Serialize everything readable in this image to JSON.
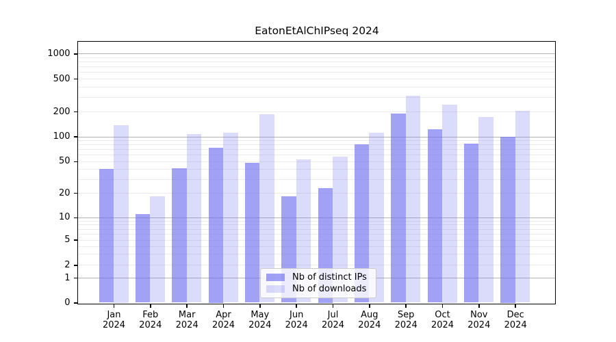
{
  "figure": {
    "title": "EatonEtAlChIPseq 2024"
  },
  "legend": {
    "items": [
      {
        "label": "Nb of distinct IPs",
        "color_key": "series_ips"
      },
      {
        "label": "Nb of downloads",
        "color_key": "series_downloads"
      }
    ]
  },
  "colors": {
    "series_ips": "rgba(110,110,240,0.65)",
    "series_downloads": "rgba(110,110,240,0.25)",
    "grid_major": "#b3b3b3",
    "grid_minor": "#ebebeb",
    "axis": "#000000",
    "legend_border": "#cbcbcb"
  },
  "chart_data": {
    "type": "bar",
    "title": "EatonEtAlChIPseq 2024",
    "categories": [
      "Jan 2024",
      "Feb 2024",
      "Mar 2024",
      "Apr 2024",
      "May 2024",
      "Jun 2024",
      "Jul 2024",
      "Aug 2024",
      "Sep 2024",
      "Oct 2024",
      "Nov 2024",
      "Dec 2024"
    ],
    "series": [
      {
        "name": "Nb of distinct IPs",
        "values": [
          40,
          11,
          41,
          73,
          48,
          18,
          23,
          80,
          190,
          123,
          82,
          100
        ]
      },
      {
        "name": "Nb of downloads",
        "values": [
          137,
          18,
          106,
          112,
          185,
          53,
          57,
          112,
          310,
          245,
          172,
          205
        ]
      }
    ],
    "xlabel": "",
    "ylabel": "",
    "yscale": "symlog",
    "y_ticks": [
      0,
      1,
      2,
      5,
      10,
      20,
      50,
      100,
      200,
      500,
      1000
    ],
    "ylim": [
      0,
      1400
    ],
    "grid": "horizontal major and minor",
    "legend_position": "lower center inside plot"
  }
}
